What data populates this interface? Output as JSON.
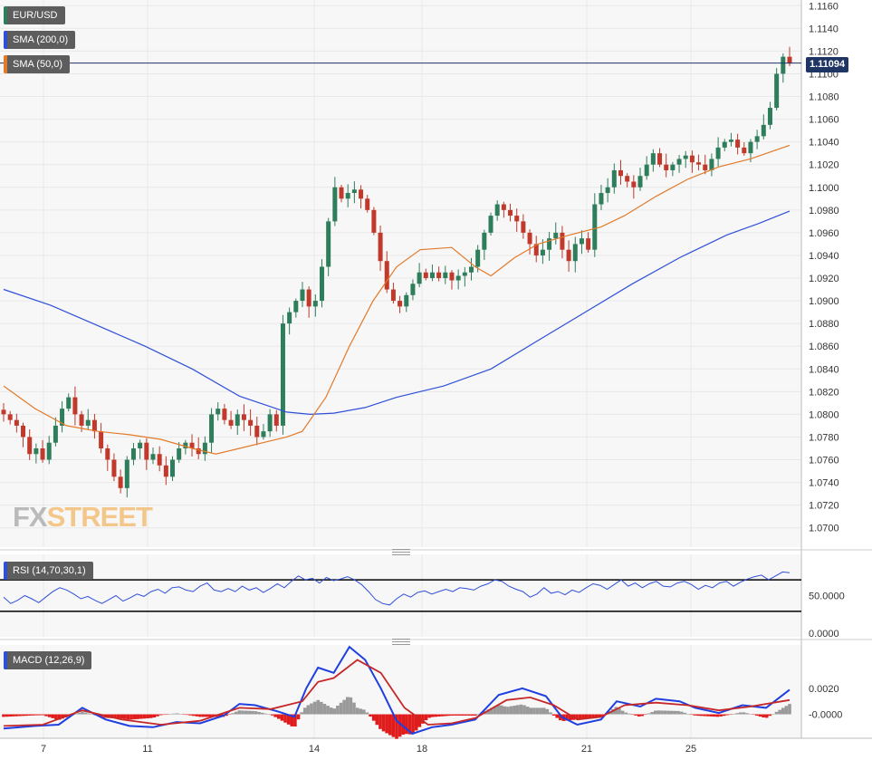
{
  "legend": {
    "pair": "EUR/USD",
    "sma200": "SMA (200,0)",
    "sma50": "SMA (50,0)",
    "rsi": "RSI (14,70,30,1)",
    "macd": "MACD (12,26,9)"
  },
  "last_price": "1.11094",
  "watermark": {
    "part1": "FX",
    "part2": "STREET"
  },
  "colors": {
    "bull": "#2e7d5b",
    "bear": "#c0392b",
    "sma200": "#2f4fd8",
    "sma50": "#e27a2a",
    "rsi": "#2f4fd8",
    "macd": "#1f3fe0",
    "signal": "#c62828",
    "hist_pos": "#9a9a9a",
    "hist_neg": "#e01b1b",
    "grid": "#e8e8e8",
    "panel_bg": "#f7f7f7"
  },
  "chart_data": [
    {
      "type": "candlestick",
      "title": "EUR/USD",
      "x_ticks": [
        "7",
        "11",
        "14",
        "18",
        "21",
        "25"
      ],
      "y_ticks": [
        "1.1160",
        "1.1140",
        "1.1120",
        "1.1100",
        "1.1080",
        "1.1060",
        "1.1040",
        "1.1020",
        "1.1000",
        "1.0980",
        "1.0960",
        "1.0940",
        "1.0920",
        "1.0900",
        "1.0880",
        "1.0860",
        "1.0840",
        "1.0820",
        "1.0800",
        "1.0780",
        "1.0760",
        "1.0740",
        "1.0720",
        "1.0700"
      ],
      "ylim": [
        1.0683,
        1.1165
      ],
      "close_path": [
        1.08,
        1.0795,
        1.079,
        1.078,
        1.0765,
        1.077,
        1.076,
        1.0775,
        1.079,
        1.0805,
        1.0815,
        1.08,
        1.079,
        1.0795,
        1.0785,
        1.077,
        1.076,
        1.0745,
        1.0735,
        1.076,
        1.077,
        1.0775,
        1.076,
        1.0765,
        1.0755,
        1.0745,
        1.076,
        1.077,
        1.0775,
        1.077,
        1.0765,
        1.0775,
        1.08,
        1.0805,
        1.0795,
        1.079,
        1.08,
        1.0795,
        1.079,
        1.078,
        1.0785,
        1.08,
        1.079,
        1.088,
        1.089,
        1.09,
        1.091,
        1.0895,
        1.09,
        1.093,
        1.097,
        1.1,
        1.099,
        1.0995,
        1.0998,
        1.099,
        1.098,
        1.096,
        1.0935,
        1.091,
        1.09,
        1.0895,
        1.0905,
        1.0915,
        1.0925,
        1.092,
        1.0925,
        1.092,
        1.0925,
        1.0918,
        1.0922,
        1.0925,
        1.093,
        1.0945,
        1.096,
        1.0975,
        1.0985,
        1.098,
        1.0975,
        1.097,
        1.096,
        1.095,
        1.094,
        1.0945,
        1.0955,
        1.096,
        1.0945,
        1.0935,
        1.095,
        1.0955,
        1.0945,
        1.0985,
        1.0995,
        1.1,
        1.1015,
        1.101,
        1.1005,
        1.1,
        1.101,
        1.102,
        1.103,
        1.102,
        1.1015,
        1.102,
        1.1025,
        1.1028,
        1.1022,
        1.102,
        1.1015,
        1.1025,
        1.1035,
        1.104,
        1.1042,
        1.1035,
        1.103,
        1.104,
        1.1045,
        1.1055,
        1.107,
        1.11,
        1.1115,
        1.1109
      ],
      "sma50": [
        [
          0.0,
          1.0825
        ],
        [
          0.04,
          1.0805
        ],
        [
          0.08,
          1.079
        ],
        [
          0.12,
          1.0785
        ],
        [
          0.16,
          1.0782
        ],
        [
          0.2,
          1.0778
        ],
        [
          0.24,
          1.077
        ],
        [
          0.27,
          1.0765
        ],
        [
          0.3,
          1.077
        ],
        [
          0.33,
          1.0775
        ],
        [
          0.36,
          1.078
        ],
        [
          0.38,
          1.0785
        ],
        [
          0.41,
          1.0815
        ],
        [
          0.44,
          1.086
        ],
        [
          0.47,
          1.09
        ],
        [
          0.5,
          1.093
        ],
        [
          0.53,
          1.0945
        ],
        [
          0.57,
          1.0947
        ],
        [
          0.6,
          1.093
        ],
        [
          0.62,
          1.0922
        ],
        [
          0.65,
          1.0938
        ],
        [
          0.68,
          1.095
        ],
        [
          0.72,
          1.0958
        ],
        [
          0.76,
          1.0965
        ],
        [
          0.79,
          1.0975
        ],
        [
          0.83,
          1.0992
        ],
        [
          0.87,
          1.1007
        ],
        [
          0.91,
          1.1018
        ],
        [
          0.95,
          1.1025
        ],
        [
          1.0,
          1.1037
        ]
      ],
      "sma200": [
        [
          0.0,
          1.091
        ],
        [
          0.06,
          1.0896
        ],
        [
          0.12,
          1.0878
        ],
        [
          0.18,
          1.086
        ],
        [
          0.24,
          1.084
        ],
        [
          0.3,
          1.0816
        ],
        [
          0.36,
          1.0802
        ],
        [
          0.39,
          1.08
        ],
        [
          0.42,
          1.0801
        ],
        [
          0.46,
          1.0806
        ],
        [
          0.5,
          1.0815
        ],
        [
          0.56,
          1.0825
        ],
        [
          0.62,
          1.084
        ],
        [
          0.68,
          1.0865
        ],
        [
          0.74,
          1.089
        ],
        [
          0.8,
          1.0915
        ],
        [
          0.86,
          1.0938
        ],
        [
          0.92,
          1.0958
        ],
        [
          0.96,
          1.0968
        ],
        [
          1.0,
          1.0979
        ]
      ]
    },
    {
      "type": "line",
      "title": "RSI (14,70,30,1)",
      "y_ticks": [
        "50.0000",
        "0.0000"
      ],
      "ylim": [
        0,
        100
      ],
      "levels": [
        70,
        30
      ],
      "values": [
        48,
        40,
        44,
        50,
        46,
        41,
        48,
        55,
        60,
        57,
        52,
        46,
        49,
        44,
        40,
        45,
        50,
        43,
        47,
        52,
        49,
        55,
        58,
        53,
        60,
        61,
        57,
        55,
        62,
        66,
        57,
        55,
        59,
        55,
        62,
        57,
        60,
        54,
        59,
        65,
        60,
        68,
        75,
        70,
        72,
        66,
        73,
        69,
        71,
        74,
        70,
        64,
        55,
        45,
        40,
        38,
        46,
        52,
        48,
        54,
        56,
        52,
        55,
        58,
        55,
        60,
        59,
        57,
        62,
        65,
        70,
        68,
        62,
        58,
        55,
        48,
        52,
        60,
        53,
        55,
        51,
        57,
        54,
        60,
        65,
        63,
        58,
        64,
        70,
        62,
        66,
        60,
        65,
        68,
        62,
        61,
        66,
        68,
        64,
        58,
        63,
        60,
        66,
        68,
        62,
        67,
        71,
        74,
        76,
        70,
        75,
        80,
        79
      ]
    },
    {
      "type": "bar+line",
      "title": "MACD (12,26,9)",
      "y_ticks": [
        "0.0020",
        "-0.0000"
      ],
      "ylim": [
        -0.00185,
        0.00535
      ],
      "macd": [
        [
          0.0,
          -0.0011
        ],
        [
          0.04,
          -0.0009
        ],
        [
          0.07,
          -0.0008
        ],
        [
          0.1,
          0.0005
        ],
        [
          0.13,
          -0.0004
        ],
        [
          0.16,
          -0.0009
        ],
        [
          0.19,
          -0.001
        ],
        [
          0.22,
          -0.0006
        ],
        [
          0.25,
          -0.0007
        ],
        [
          0.28,
          -0.0001
        ],
        [
          0.3,
          0.0008
        ],
        [
          0.32,
          0.0007
        ],
        [
          0.35,
          0.0002
        ],
        [
          0.37,
          -0.0002
        ],
        [
          0.385,
          0.002
        ],
        [
          0.4,
          0.0036
        ],
        [
          0.42,
          0.0032
        ],
        [
          0.44,
          0.0052
        ],
        [
          0.46,
          0.0042
        ],
        [
          0.48,
          0.002
        ],
        [
          0.5,
          -0.0005
        ],
        [
          0.52,
          -0.0015
        ],
        [
          0.545,
          -0.001
        ],
        [
          0.57,
          -0.0008
        ],
        [
          0.6,
          -0.0004
        ],
        [
          0.63,
          0.0015
        ],
        [
          0.66,
          0.002
        ],
        [
          0.69,
          0.0014
        ],
        [
          0.71,
          -0.0002
        ],
        [
          0.73,
          -0.0008
        ],
        [
          0.76,
          -0.0004
        ],
        [
          0.78,
          0.001
        ],
        [
          0.81,
          0.0006
        ],
        [
          0.83,
          0.0012
        ],
        [
          0.86,
          0.001
        ],
        [
          0.88,
          0.0005
        ],
        [
          0.91,
          0.0001
        ],
        [
          0.94,
          0.0007
        ],
        [
          0.97,
          0.0005
        ],
        [
          1.0,
          0.0019
        ]
      ],
      "signal": [
        [
          0.0,
          -0.0009
        ],
        [
          0.05,
          -0.0008
        ],
        [
          0.1,
          0.0003
        ],
        [
          0.15,
          -0.0004
        ],
        [
          0.2,
          -0.0008
        ],
        [
          0.25,
          -0.0005
        ],
        [
          0.3,
          0.0005
        ],
        [
          0.34,
          0.0004
        ],
        [
          0.38,
          0.001
        ],
        [
          0.4,
          0.0025
        ],
        [
          0.42,
          0.0028
        ],
        [
          0.45,
          0.0042
        ],
        [
          0.48,
          0.0032
        ],
        [
          0.51,
          0.0005
        ],
        [
          0.54,
          -0.0008
        ],
        [
          0.57,
          -0.0007
        ],
        [
          0.6,
          -0.0003
        ],
        [
          0.64,
          0.0011
        ],
        [
          0.67,
          0.0013
        ],
        [
          0.7,
          0.0007
        ],
        [
          0.73,
          -0.0004
        ],
        [
          0.76,
          -0.0002
        ],
        [
          0.79,
          0.0007
        ],
        [
          0.83,
          0.0009
        ],
        [
          0.87,
          0.0007
        ],
        [
          0.91,
          0.0003
        ],
        [
          0.95,
          0.0006
        ],
        [
          1.0,
          0.0011
        ]
      ]
    }
  ]
}
